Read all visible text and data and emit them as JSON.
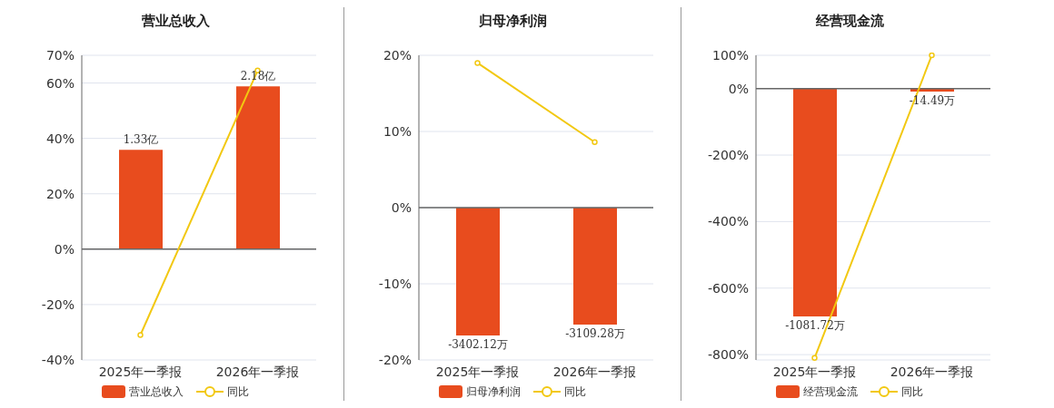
{
  "chart_data": [
    {
      "type": "bar",
      "title": "营业总收入",
      "categories": [
        "2025年一季报",
        "2026年一季报"
      ],
      "ylim": [
        -40,
        70
      ],
      "yticks": [
        {
          "value": -40,
          "label": "-40%"
        },
        {
          "value": -20,
          "label": "-20%"
        },
        {
          "value": 0,
          "label": "0%"
        },
        {
          "value": 20,
          "label": "20%"
        },
        {
          "value": 40,
          "label": "40%"
        },
        {
          "value": 60,
          "label": "60%"
        },
        {
          "value": 70,
          "label": "70%"
        }
      ],
      "grid": "y",
      "legend": "bottom",
      "series": [
        {
          "name": "营业总收入",
          "axis": "y2",
          "color": "#e84c1e",
          "values": [
            1.33,
            2.18
          ],
          "value_labels": [
            "1.33亿",
            "2.18亿"
          ]
        },
        {
          "name": "同比",
          "type": "line",
          "color": "#f2c811",
          "marker": "circle",
          "values": [
            -31,
            64.5
          ]
        }
      ]
    },
    {
      "type": "bar",
      "title": "归母净利润",
      "categories": [
        "2025年一季报",
        "2026年一季报"
      ],
      "ylim": [
        -20,
        20
      ],
      "yticks": [
        {
          "value": -20,
          "label": "-20%"
        },
        {
          "value": -10,
          "label": "-10%"
        },
        {
          "value": 0,
          "label": "0%"
        },
        {
          "value": 10,
          "label": "10%"
        },
        {
          "value": 20,
          "label": "20%"
        }
      ],
      "grid": "y",
      "legend": "bottom",
      "series": [
        {
          "name": "归母净利润",
          "axis": "y2",
          "color": "#e84c1e",
          "values": [
            -3402.12,
            -3109.28
          ],
          "value_labels": [
            "-3402.12万",
            "-3109.28万"
          ]
        },
        {
          "name": "同比",
          "type": "line",
          "color": "#f2c811",
          "marker": "circle",
          "values": [
            19,
            8.6
          ]
        }
      ]
    },
    {
      "type": "bar",
      "title": "经营现金流",
      "categories": [
        "2025年一季报",
        "2026年一季报"
      ],
      "ylim": [
        -816,
        100
      ],
      "yticks": [
        {
          "value": -800,
          "label": "-800%"
        },
        {
          "value": -600,
          "label": "-600%"
        },
        {
          "value": -400,
          "label": "-400%"
        },
        {
          "value": -200,
          "label": "-200%"
        },
        {
          "value": 0,
          "label": "0%"
        },
        {
          "value": 100,
          "label": "100%"
        }
      ],
      "grid": "y",
      "legend": "bottom",
      "series": [
        {
          "name": "经营现金流",
          "axis": "y2",
          "color": "#e84c1e",
          "values": [
            -1081.72,
            -14.49
          ],
          "value_labels": [
            "-1081.72万",
            "-14.49万"
          ]
        },
        {
          "name": "同比",
          "type": "line",
          "color": "#f2c811",
          "marker": "circle",
          "values": [
            -810,
            100
          ]
        }
      ]
    }
  ]
}
